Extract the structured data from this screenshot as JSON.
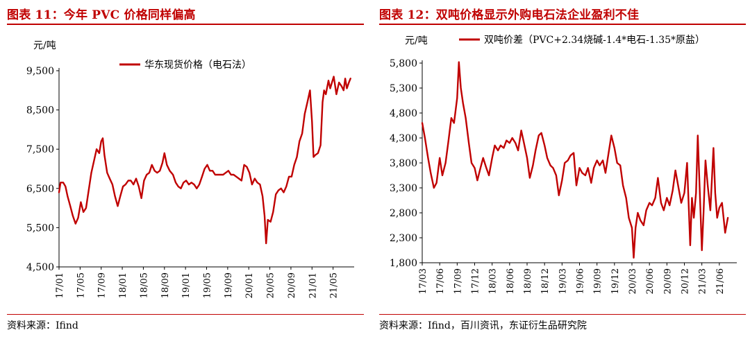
{
  "left": {
    "figure_title": "图表 11：今年 PVC 价格同样偏高",
    "source": "资料来源：Ifind"
  },
  "right": {
    "figure_title": "图表 12：双吨价格显示外购电石法企业盈利不佳",
    "source": "资料来源：Ifind，百川资讯，东证衍生品研究院"
  },
  "colors": {
    "accent": "#c00000",
    "line": "#c00000",
    "axis": "#000000"
  },
  "chart_data": [
    {
      "type": "line",
      "title": "",
      "unit_label": "元/吨",
      "ylim": [
        4500,
        9500
      ],
      "yticks": [
        4500,
        5500,
        6500,
        7500,
        8500,
        9500
      ],
      "ytick_labels": [
        "4,500",
        "5,500",
        "6,500",
        "7,500",
        "8,500",
        "9,500"
      ],
      "x_range": [
        "2017-01",
        "2021-09"
      ],
      "xtick_labels": [
        "17/01",
        "17/05",
        "17/09",
        "18/01",
        "18/05",
        "18/09",
        "19/01",
        "19/05",
        "19/09",
        "20/01",
        "20/05",
        "20/09",
        "21/01",
        "21/05"
      ],
      "legend_position": "top-center",
      "series": [
        {
          "name": "华东现货价格（电石法）",
          "color": "#c00000",
          "points": [
            [
              "2017-01-01",
              6400
            ],
            [
              "2017-01-10",
              6650
            ],
            [
              "2017-01-25",
              6650
            ],
            [
              "2017-02-08",
              6550
            ],
            [
              "2017-02-20",
              6300
            ],
            [
              "2017-03-05",
              6050
            ],
            [
              "2017-03-20",
              5800
            ],
            [
              "2017-04-05",
              5600
            ],
            [
              "2017-04-20",
              5750
            ],
            [
              "2017-05-05",
              6150
            ],
            [
              "2017-05-20",
              5900
            ],
            [
              "2017-06-05",
              6000
            ],
            [
              "2017-06-20",
              6450
            ],
            [
              "2017-07-05",
              6900
            ],
            [
              "2017-07-20",
              7200
            ],
            [
              "2017-08-05",
              7500
            ],
            [
              "2017-08-20",
              7400
            ],
            [
              "2017-09-01",
              7700
            ],
            [
              "2017-09-10",
              7780
            ],
            [
              "2017-09-20",
              7350
            ],
            [
              "2017-10-05",
              6900
            ],
            [
              "2017-10-20",
              6750
            ],
            [
              "2017-11-05",
              6600
            ],
            [
              "2017-11-20",
              6300
            ],
            [
              "2017-12-05",
              6050
            ],
            [
              "2017-12-20",
              6300
            ],
            [
              "2018-01-05",
              6550
            ],
            [
              "2018-01-20",
              6600
            ],
            [
              "2018-02-05",
              6700
            ],
            [
              "2018-02-20",
              6700
            ],
            [
              "2018-03-05",
              6600
            ],
            [
              "2018-03-20",
              6750
            ],
            [
              "2018-04-05",
              6550
            ],
            [
              "2018-04-20",
              6250
            ],
            [
              "2018-05-05",
              6700
            ],
            [
              "2018-05-20",
              6850
            ],
            [
              "2018-06-05",
              6900
            ],
            [
              "2018-06-20",
              7100
            ],
            [
              "2018-07-05",
              6950
            ],
            [
              "2018-07-20",
              6900
            ],
            [
              "2018-08-05",
              6950
            ],
            [
              "2018-08-20",
              7150
            ],
            [
              "2018-09-01",
              7400
            ],
            [
              "2018-09-15",
              7100
            ],
            [
              "2018-10-01",
              6950
            ],
            [
              "2018-10-20",
              6850
            ],
            [
              "2018-11-05",
              6650
            ],
            [
              "2018-11-20",
              6550
            ],
            [
              "2018-12-05",
              6500
            ],
            [
              "2018-12-20",
              6650
            ],
            [
              "2019-01-05",
              6700
            ],
            [
              "2019-01-20",
              6600
            ],
            [
              "2019-02-05",
              6650
            ],
            [
              "2019-02-20",
              6600
            ],
            [
              "2019-03-05",
              6500
            ],
            [
              "2019-03-20",
              6600
            ],
            [
              "2019-04-05",
              6800
            ],
            [
              "2019-04-20",
              7000
            ],
            [
              "2019-05-05",
              7100
            ],
            [
              "2019-05-20",
              6950
            ],
            [
              "2019-06-05",
              6950
            ],
            [
              "2019-06-20",
              6850
            ],
            [
              "2019-07-05",
              6850
            ],
            [
              "2019-07-20",
              6850
            ],
            [
              "2019-08-05",
              6850
            ],
            [
              "2019-08-20",
              6900
            ],
            [
              "2019-09-05",
              6950
            ],
            [
              "2019-09-20",
              6850
            ],
            [
              "2019-10-05",
              6850
            ],
            [
              "2019-10-20",
              6800
            ],
            [
              "2019-11-05",
              6750
            ],
            [
              "2019-11-20",
              6700
            ],
            [
              "2019-12-05",
              7100
            ],
            [
              "2019-12-20",
              7050
            ],
            [
              "2020-01-05",
              6900
            ],
            [
              "2020-01-20",
              6600
            ],
            [
              "2020-02-05",
              6750
            ],
            [
              "2020-02-20",
              6650
            ],
            [
              "2020-03-05",
              6600
            ],
            [
              "2020-03-20",
              6300
            ],
            [
              "2020-04-01",
              5800
            ],
            [
              "2020-04-10",
              5100
            ],
            [
              "2020-04-20",
              5700
            ],
            [
              "2020-05-05",
              5650
            ],
            [
              "2020-05-20",
              5900
            ],
            [
              "2020-06-05",
              6350
            ],
            [
              "2020-06-20",
              6450
            ],
            [
              "2020-07-05",
              6500
            ],
            [
              "2020-07-20",
              6400
            ],
            [
              "2020-08-05",
              6550
            ],
            [
              "2020-08-20",
              6800
            ],
            [
              "2020-09-05",
              6800
            ],
            [
              "2020-09-20",
              7100
            ],
            [
              "2020-10-05",
              7300
            ],
            [
              "2020-10-20",
              7700
            ],
            [
              "2020-11-05",
              7900
            ],
            [
              "2020-11-20",
              8400
            ],
            [
              "2020-12-05",
              8700
            ],
            [
              "2020-12-20",
              9000
            ],
            [
              "2021-01-01",
              8200
            ],
            [
              "2021-01-10",
              7300
            ],
            [
              "2021-01-20",
              7350
            ],
            [
              "2021-02-05",
              7400
            ],
            [
              "2021-02-20",
              7600
            ],
            [
              "2021-03-01",
              8700
            ],
            [
              "2021-03-10",
              9000
            ],
            [
              "2021-03-20",
              8900
            ],
            [
              "2021-04-05",
              9250
            ],
            [
              "2021-04-15",
              9050
            ],
            [
              "2021-04-25",
              9200
            ],
            [
              "2021-05-05",
              9350
            ],
            [
              "2021-05-20",
              8900
            ],
            [
              "2021-06-05",
              9200
            ],
            [
              "2021-06-20",
              9100
            ],
            [
              "2021-07-01",
              9000
            ],
            [
              "2021-07-10",
              9300
            ],
            [
              "2021-07-20",
              9050
            ],
            [
              "2021-08-01",
              9200
            ],
            [
              "2021-08-10",
              9300
            ]
          ]
        }
      ]
    },
    {
      "type": "line",
      "title": "",
      "unit_label": "元/吨",
      "ylim": [
        1800,
        5800
      ],
      "yticks": [
        1800,
        2300,
        2800,
        3300,
        3800,
        4300,
        4800,
        5300,
        5800
      ],
      "ytick_labels": [
        "1,800",
        "2,300",
        "2,800",
        "3,300",
        "3,800",
        "4,300",
        "4,800",
        "5,300",
        "5,800"
      ],
      "x_range": [
        "2017-03",
        "2021-09"
      ],
      "xtick_labels": [
        "17/03",
        "17/06",
        "17/09",
        "17/12",
        "18/03",
        "18/06",
        "18/09",
        "18/12",
        "19/03",
        "19/06",
        "19/09",
        "19/12",
        "20/03",
        "20/06",
        "20/09",
        "20/12",
        "21/03",
        "21/06"
      ],
      "legend_position": "top-left",
      "series": [
        {
          "name": "双吨价差（PVC+2.34烧碱-1.4*电石-1.35*原盐）",
          "color": "#c00000",
          "points": [
            [
              "2017-03-01",
              4600
            ],
            [
              "2017-03-15",
              4300
            ],
            [
              "2017-04-01",
              3900
            ],
            [
              "2017-04-15",
              3600
            ],
            [
              "2017-05-01",
              3300
            ],
            [
              "2017-05-15",
              3400
            ],
            [
              "2017-06-01",
              3900
            ],
            [
              "2017-06-15",
              3550
            ],
            [
              "2017-07-01",
              3800
            ],
            [
              "2017-07-15",
              4200
            ],
            [
              "2017-08-01",
              4700
            ],
            [
              "2017-08-15",
              4600
            ],
            [
              "2017-09-01",
              5100
            ],
            [
              "2017-09-10",
              5820
            ],
            [
              "2017-09-20",
              5300
            ],
            [
              "2017-10-01",
              5000
            ],
            [
              "2017-10-15",
              4700
            ],
            [
              "2017-11-01",
              4200
            ],
            [
              "2017-11-15",
              3800
            ],
            [
              "2017-12-01",
              3700
            ],
            [
              "2017-12-15",
              3450
            ],
            [
              "2018-01-01",
              3700
            ],
            [
              "2018-01-15",
              3900
            ],
            [
              "2018-02-01",
              3700
            ],
            [
              "2018-02-15",
              3550
            ],
            [
              "2018-03-01",
              3900
            ],
            [
              "2018-03-15",
              4150
            ],
            [
              "2018-04-01",
              4050
            ],
            [
              "2018-04-15",
              4150
            ],
            [
              "2018-05-01",
              4100
            ],
            [
              "2018-05-15",
              4250
            ],
            [
              "2018-06-01",
              4200
            ],
            [
              "2018-06-15",
              4300
            ],
            [
              "2018-07-01",
              4200
            ],
            [
              "2018-07-15",
              4050
            ],
            [
              "2018-08-01",
              4450
            ],
            [
              "2018-08-15",
              4200
            ],
            [
              "2018-09-01",
              3900
            ],
            [
              "2018-09-15",
              3500
            ],
            [
              "2018-10-01",
              3750
            ],
            [
              "2018-10-15",
              4050
            ],
            [
              "2018-11-01",
              4350
            ],
            [
              "2018-11-15",
              4400
            ],
            [
              "2018-12-01",
              4150
            ],
            [
              "2018-12-15",
              3900
            ],
            [
              "2019-01-01",
              3750
            ],
            [
              "2019-01-15",
              3700
            ],
            [
              "2019-02-01",
              3550
            ],
            [
              "2019-02-15",
              3150
            ],
            [
              "2019-03-01",
              3450
            ],
            [
              "2019-03-15",
              3800
            ],
            [
              "2019-04-01",
              3850
            ],
            [
              "2019-04-15",
              3950
            ],
            [
              "2019-05-01",
              4000
            ],
            [
              "2019-05-15",
              3350
            ],
            [
              "2019-06-01",
              3700
            ],
            [
              "2019-06-15",
              3600
            ],
            [
              "2019-07-01",
              3550
            ],
            [
              "2019-07-15",
              3700
            ],
            [
              "2019-08-01",
              3400
            ],
            [
              "2019-08-15",
              3700
            ],
            [
              "2019-09-01",
              3850
            ],
            [
              "2019-09-15",
              3750
            ],
            [
              "2019-10-01",
              3850
            ],
            [
              "2019-10-15",
              3600
            ],
            [
              "2019-11-01",
              4000
            ],
            [
              "2019-11-15",
              4350
            ],
            [
              "2019-12-01",
              4100
            ],
            [
              "2019-12-15",
              3800
            ],
            [
              "2020-01-01",
              3750
            ],
            [
              "2020-01-15",
              3350
            ],
            [
              "2020-02-01",
              3100
            ],
            [
              "2020-02-15",
              2700
            ],
            [
              "2020-03-01",
              2500
            ],
            [
              "2020-03-10",
              1900
            ],
            [
              "2020-03-20",
              2500
            ],
            [
              "2020-04-01",
              2800
            ],
            [
              "2020-04-15",
              2650
            ],
            [
              "2020-05-01",
              2550
            ],
            [
              "2020-05-15",
              2850
            ],
            [
              "2020-06-01",
              3000
            ],
            [
              "2020-06-15",
              2950
            ],
            [
              "2020-07-01",
              3100
            ],
            [
              "2020-07-15",
              3500
            ],
            [
              "2020-08-01",
              3000
            ],
            [
              "2020-08-15",
              2850
            ],
            [
              "2020-09-01",
              3100
            ],
            [
              "2020-09-15",
              2950
            ],
            [
              "2020-10-01",
              3250
            ],
            [
              "2020-10-15",
              3650
            ],
            [
              "2020-11-01",
              3300
            ],
            [
              "2020-11-15",
              3000
            ],
            [
              "2020-12-01",
              3200
            ],
            [
              "2020-12-15",
              3800
            ],
            [
              "2021-01-01",
              2150
            ],
            [
              "2021-01-10",
              3100
            ],
            [
              "2021-01-20",
              2700
            ],
            [
              "2021-02-01",
              3200
            ],
            [
              "2021-02-10",
              4350
            ],
            [
              "2021-02-20",
              3300
            ],
            [
              "2021-03-01",
              2050
            ],
            [
              "2021-03-10",
              2800
            ],
            [
              "2021-03-20",
              3850
            ],
            [
              "2021-04-01",
              3350
            ],
            [
              "2021-04-15",
              2850
            ],
            [
              "2021-05-01",
              4100
            ],
            [
              "2021-05-10",
              3200
            ],
            [
              "2021-05-20",
              2700
            ],
            [
              "2021-06-01",
              2900
            ],
            [
              "2021-06-15",
              3000
            ],
            [
              "2021-07-01",
              2400
            ],
            [
              "2021-07-15",
              2700
            ]
          ]
        }
      ]
    }
  ]
}
